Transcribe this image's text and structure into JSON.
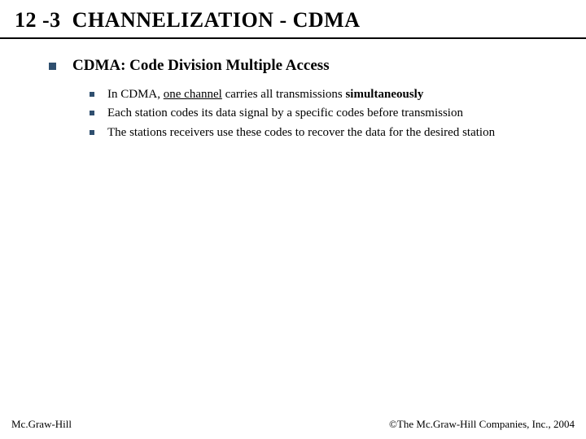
{
  "colors": {
    "background": "#ffffff",
    "text": "#000000",
    "bullet": "#2f4f6f",
    "divider": "#000000"
  },
  "typography": {
    "family": "Times New Roman",
    "title_fontsize": 26,
    "level1_fontsize": 19,
    "level2_fontsize": 15,
    "footer_fontsize": 13
  },
  "title": {
    "section": "12 -3",
    "text": "CHANNELIZATION - CDMA"
  },
  "level1": {
    "text": "CDMA: Code Division Multiple Access"
  },
  "level2": [
    {
      "pre": "In CDMA, ",
      "underline": "one channel",
      "mid": " carries all transmissions ",
      "bold": "simultaneously"
    },
    {
      "text": "Each station codes its data signal by a specific codes before transmission"
    },
    {
      "text": "The stations receivers  use these codes to recover the data for the desired station"
    }
  ],
  "footer": {
    "left": "Mc.Graw-Hill",
    "right": "©The Mc.Graw-Hill Companies, Inc., 2004"
  }
}
